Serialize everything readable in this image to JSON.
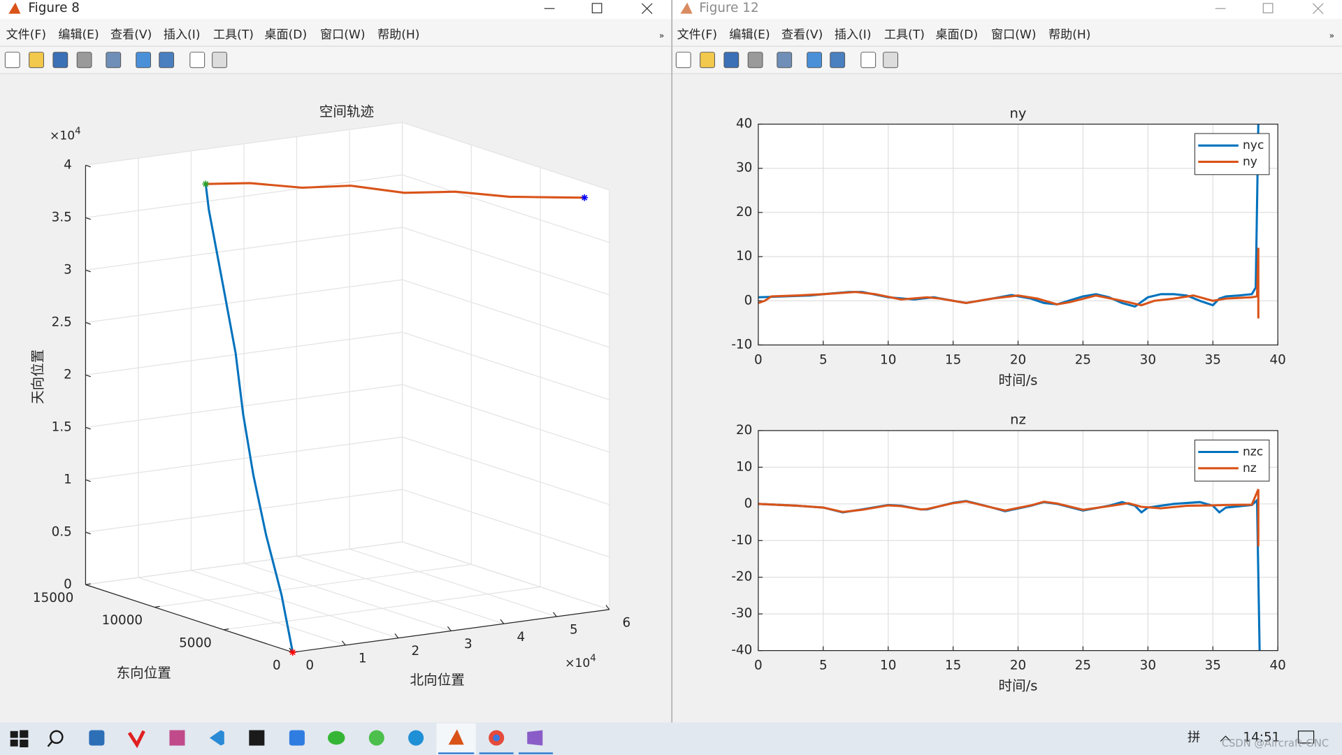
{
  "windows": [
    {
      "title": "Figure 8",
      "active": true,
      "menu": [
        "文件(F)",
        "编辑(E)",
        "查看(V)",
        "插入(I)",
        "工具(T)",
        "桌面(D)",
        "窗口(W)",
        "帮助(H)"
      ],
      "chart_data": {
        "type": "line3d",
        "title": "空间轨迹",
        "xlabel": "北向位置",
        "ylabel": "东向位置",
        "zlabel": "天向位置",
        "xlim": [
          0,
          60000
        ],
        "xticks": [
          0,
          {
            "value": 10000,
            "label": "1"
          },
          {
            "value": 20000,
            "label": "2"
          },
          {
            "value": 30000,
            "label": "3"
          },
          {
            "value": 40000,
            "label": "4"
          },
          {
            "value": 50000,
            "label": "5"
          },
          {
            "value": 60000,
            "label": "6"
          }
        ],
        "x_multiplier": {
          "base": "×10",
          "exponent": "4"
        },
        "ylim": [
          0,
          15000
        ],
        "yticks": [
          0,
          5000,
          10000,
          15000
        ],
        "zlim": [
          0,
          40000
        ],
        "zticks": [
          0,
          {
            "value": 5000,
            "label": "0.5"
          },
          {
            "value": 10000,
            "label": "1"
          },
          {
            "value": 15000,
            "label": "1.5"
          },
          {
            "value": 20000,
            "label": "2"
          },
          {
            "value": 25000,
            "label": "2.5"
          },
          {
            "value": 30000,
            "label": "3"
          },
          {
            "value": 35000,
            "label": "3.5"
          },
          {
            "value": 40000,
            "label": "4"
          }
        ],
        "z_multiplier": {
          "base": "×10",
          "exponent": "4"
        },
        "grid": true,
        "series": [
          {
            "color": "#0072bd",
            "x": [
              0,
              500,
              1500,
              3000,
              5000,
              7500,
              10500,
              13000,
              15500,
              17000
            ],
            "y": [
              0,
              1000,
              2500,
              4000,
              5500,
              7000,
              9000,
              10500,
              12000,
              12800
            ],
            "z": [
              0,
              5000,
              10000,
              15000,
              20000,
              25000,
              30000,
              33000,
              36000,
              38000
            ]
          },
          {
            "color": "#d95319",
            "x": [
              17000,
              22000,
              28000,
              34000,
              40000,
              46000,
              52000,
              57000,
              60000
            ],
            "y": [
              12800,
              11500,
              10000,
              8800,
              7200,
              5800,
              4200,
              2800,
              1800
            ],
            "z": [
              38000,
              38300,
              38100,
              38400,
              38000,
              38300,
              38100,
              38300,
              38500
            ]
          }
        ],
        "markers": [
          {
            "color": "#2ca02c",
            "x": 17000,
            "y": 12800,
            "z": 38000
          },
          {
            "color": "#0000ff",
            "x": 60000,
            "y": 1800,
            "z": 38500
          },
          {
            "color": "#ff0000",
            "x": 0,
            "y": 0,
            "z": 0
          }
        ]
      }
    },
    {
      "title": "Figure 12",
      "active": false,
      "menu": [
        "文件(F)",
        "编辑(E)",
        "查看(V)",
        "插入(I)",
        "工具(T)",
        "桌面(D)",
        "窗口(W)",
        "帮助(H)"
      ],
      "chart_data": [
        {
          "type": "line",
          "title": "ny",
          "xlabel": "时间/s",
          "xlim": [
            0,
            40
          ],
          "xticks": [
            0,
            5,
            10,
            15,
            20,
            25,
            30,
            35,
            40
          ],
          "ylim": [
            -10,
            40
          ],
          "yticks": [
            -10,
            0,
            10,
            20,
            30,
            40
          ],
          "grid": true,
          "legend": "northeast",
          "series": [
            {
              "name": "nyc",
              "color": "#0072bd",
              "x": [
                0,
                2,
                4,
                5,
                7,
                8,
                10,
                12,
                13.5,
                15,
                16,
                18,
                19.5,
                21,
                22,
                23,
                25,
                26,
                27,
                28,
                29,
                30,
                31,
                32,
                33,
                34,
                35,
                35.5,
                36,
                37,
                38,
                38.3,
                38.5
              ],
              "values": [
                0.8,
                1,
                1.2,
                1.5,
                2,
                2,
                0.8,
                0.3,
                0.8,
                0,
                -0.5,
                0.5,
                1.3,
                0.5,
                -0.5,
                -0.8,
                1,
                1.5,
                0.8,
                -0.5,
                -1.3,
                0.8,
                1.5,
                1.5,
                1.2,
                0,
                -1,
                0.5,
                1,
                1.2,
                1.5,
                3,
                40
              ]
            },
            {
              "name": "ny",
              "color": "#d95319",
              "x": [
                0,
                0.5,
                1,
                3,
                5,
                7.5,
                9,
                11,
                13,
                14,
                16,
                18,
                20,
                21.5,
                23,
                24,
                26,
                28,
                29.5,
                30.5,
                32,
                33.5,
                35,
                36,
                38,
                38.4,
                38.5,
                38.5
              ],
              "values": [
                -0.5,
                0,
                1,
                1.2,
                1.5,
                2,
                1.5,
                0.3,
                0.8,
                0.5,
                -0.5,
                0.5,
                1.2,
                0.5,
                -0.8,
                -0.3,
                1.2,
                0,
                -1,
                0,
                0.5,
                1.2,
                0,
                0.5,
                0.8,
                1,
                12,
                -4
              ]
            }
          ]
        },
        {
          "type": "line",
          "title": "nz",
          "xlabel": "时间/s",
          "xlim": [
            0,
            40
          ],
          "xticks": [
            0,
            5,
            10,
            15,
            20,
            25,
            30,
            35,
            40
          ],
          "ylim": [
            -40,
            20
          ],
          "yticks": [
            -40,
            -30,
            -20,
            -10,
            0,
            10,
            20
          ],
          "grid": true,
          "legend": "northeast",
          "series": [
            {
              "name": "nzc",
              "color": "#0072bd",
              "x": [
                0,
                3,
                5,
                6.5,
                8,
                10,
                11,
                12.5,
                13,
                15,
                16,
                18,
                19,
                21,
                22,
                23,
                25,
                27,
                28,
                29,
                29.5,
                30,
                32,
                34,
                35,
                35.5,
                36,
                38,
                38.4,
                38.6
              ],
              "values": [
                0,
                -0.5,
                -1,
                -2.3,
                -1.5,
                -0.3,
                -0.5,
                -1.5,
                -1.5,
                0.3,
                0.8,
                -1,
                -2,
                -0.5,
                0.5,
                0,
                -1.8,
                -0.5,
                0.5,
                -0.5,
                -2.3,
                -1,
                0,
                0.5,
                -0.5,
                -2.3,
                -1,
                -0.3,
                1,
                -40
              ]
            },
            {
              "name": "nz",
              "color": "#d95319",
              "x": [
                0,
                3,
                5,
                6.5,
                8,
                10,
                11,
                12.5,
                13,
                15,
                16,
                18,
                19,
                21,
                22,
                23,
                25,
                27,
                28.5,
                29.5,
                31,
                33,
                35,
                36,
                38,
                38.5,
                38.5
              ],
              "values": [
                0,
                -0.5,
                -1,
                -2.2,
                -1.6,
                -0.4,
                -0.6,
                -1.5,
                -1.4,
                0.2,
                0.7,
                -1,
                -1.8,
                -0.4,
                0.6,
                0.1,
                -1.6,
                -0.6,
                0.2,
                -0.8,
                -1.2,
                -0.5,
                -0.4,
                -0.3,
                -0.2,
                4,
                -11.6
              ]
            }
          ]
        }
      ]
    }
  ],
  "taskbar": {
    "ime": "拼",
    "time": "14:51",
    "watermark": "CSDN @Aircraft-GNC"
  }
}
